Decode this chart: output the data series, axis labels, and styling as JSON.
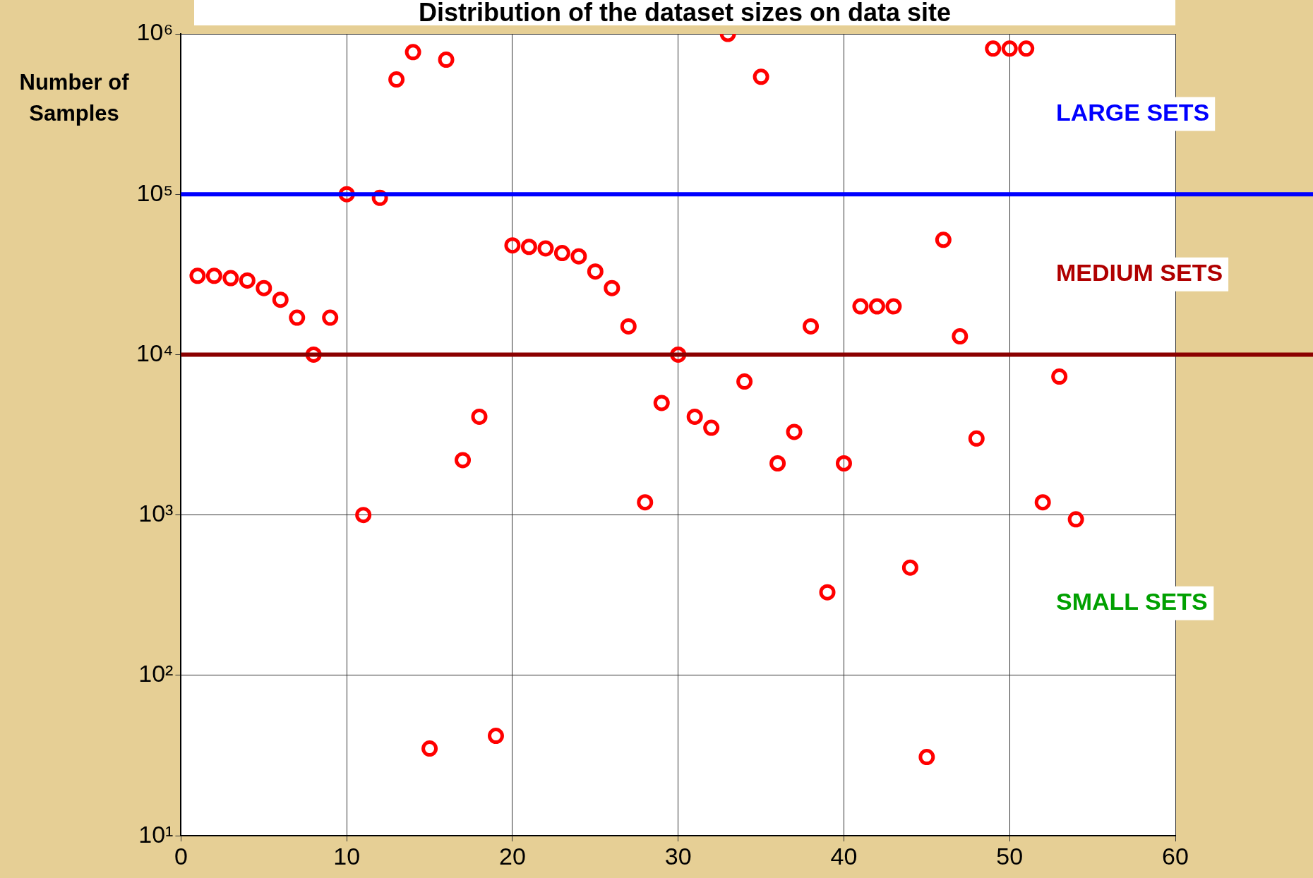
{
  "chart_data": {
    "type": "scatter",
    "title": "Distribution of the dataset sizes on data site",
    "ylabel": "Number of Samples",
    "x": [
      1,
      2,
      3,
      4,
      5,
      6,
      7,
      8,
      9,
      10,
      11,
      12,
      13,
      14,
      15,
      16,
      17,
      18,
      19,
      20,
      21,
      22,
      23,
      24,
      25,
      26,
      27,
      28,
      29,
      30,
      31,
      32,
      33,
      34,
      35,
      36,
      37,
      38,
      39,
      40,
      41,
      42,
      43,
      44,
      45,
      46,
      47,
      48,
      49,
      50,
      51,
      52,
      53,
      54
    ],
    "series": [
      {
        "color": "#ff0000",
        "values": [
          31000,
          31000,
          30000,
          29000,
          26000,
          22000,
          17000,
          10000,
          17000,
          100000,
          1000,
          95000,
          520000,
          770000,
          35,
          690000,
          2200,
          4100,
          42,
          48000,
          47000,
          46000,
          43000,
          41000,
          33000,
          26000,
          15000,
          1200,
          5000,
          10000,
          4100,
          3500,
          1000000,
          6800,
          540000,
          2100,
          3300,
          15000,
          330,
          2100,
          20000,
          20000,
          20000,
          470,
          31,
          52000,
          13000,
          3000,
          810000,
          810000,
          810000,
          1200,
          7300,
          940
        ]
      }
    ],
    "log": "y",
    "xlim": [
      0,
      60
    ],
    "xticks": [
      0,
      10,
      20,
      30,
      40,
      50,
      60
    ],
    "ylim": [
      10,
      1000000
    ],
    "yticks": [
      {
        "value": 10,
        "label": "10¹"
      },
      {
        "value": 100,
        "label": "10²"
      },
      {
        "value": 1000,
        "label": "10³"
      },
      {
        "value": 10000,
        "label": "10⁴"
      },
      {
        "value": 100000,
        "label": "10⁵"
      },
      {
        "value": 1000000,
        "label": "10⁶"
      }
    ],
    "grid": true,
    "legend": false,
    "marker": "circle",
    "ref_lines": [
      {
        "axis": "y",
        "value": 100000,
        "color": "#0000ff"
      },
      {
        "axis": "y",
        "value": 10000,
        "color": "#8b0000"
      }
    ],
    "annotations": [
      "LARGE SETS",
      "MEDIUM SETS",
      "SMALL SETS"
    ]
  }
}
